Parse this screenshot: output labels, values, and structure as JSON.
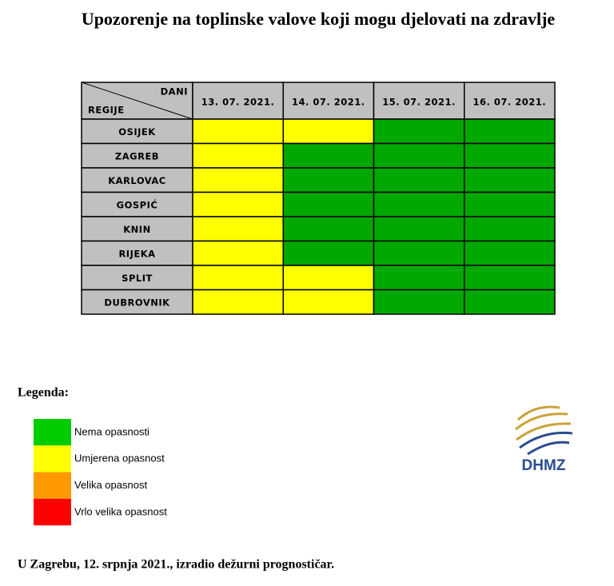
{
  "title": "Upozorenje na toplinske valove koji mogu djelovati na zdravlje",
  "table": {
    "corner_top": "DANI",
    "corner_bottom": "REGIJE",
    "header_color": "#c0c0c0",
    "days": [
      "13. 07. 2021.",
      "14. 07. 2021.",
      "15. 07. 2021.",
      "16. 07. 2021."
    ],
    "rows": [
      {
        "region": "OSIJEK",
        "cells": [
          "#ffff00",
          "#ffff00",
          "#00a800",
          "#00a800"
        ]
      },
      {
        "region": "ZAGREB",
        "cells": [
          "#ffff00",
          "#00a800",
          "#00a800",
          "#00a800"
        ]
      },
      {
        "region": "KARLOVAC",
        "cells": [
          "#ffff00",
          "#00a800",
          "#00a800",
          "#00a800"
        ]
      },
      {
        "region": "GOSPIĆ",
        "cells": [
          "#ffff00",
          "#00a800",
          "#00a800",
          "#00a800"
        ]
      },
      {
        "region": "KNIN",
        "cells": [
          "#ffff00",
          "#00a800",
          "#00a800",
          "#00a800"
        ]
      },
      {
        "region": "RIJEKA",
        "cells": [
          "#ffff00",
          "#00a800",
          "#00a800",
          "#00a800"
        ]
      },
      {
        "region": "SPLIT",
        "cells": [
          "#ffff00",
          "#ffff00",
          "#00a800",
          "#00a800"
        ]
      },
      {
        "region": "DUBROVNIK",
        "cells": [
          "#ffff00",
          "#ffff00",
          "#00a800",
          "#00a800"
        ]
      }
    ]
  },
  "legend": {
    "title": "Legenda:",
    "items": [
      {
        "name": "Nema opasnosti",
        "color": "#00cc00"
      },
      {
        "name": "Umjerena opasnost",
        "color": "#ffff00"
      },
      {
        "name": "Velika opasnost",
        "color": "#ff9900"
      },
      {
        "name": "Vrlo velika opasnost",
        "color": "#ff0000"
      }
    ]
  },
  "logo": {
    "text": "DHMZ"
  },
  "footer": "U Zagrebu, 12. srpnja 2021., izradio dežurni prognostičar."
}
